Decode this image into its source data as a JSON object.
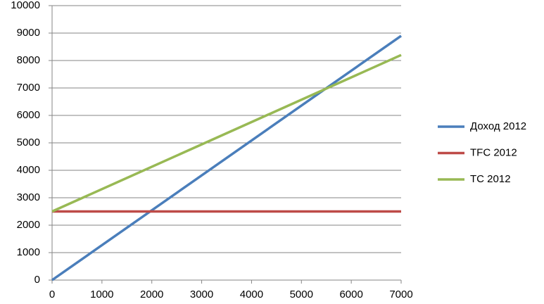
{
  "chart_data": {
    "type": "line",
    "x": [
      0,
      7000
    ],
    "series": [
      {
        "name": "Доход 2012",
        "color": "#4a7ebb",
        "values": [
          0,
          8900
        ]
      },
      {
        "name": "TFC 2012",
        "color": "#be4b48",
        "values": [
          2500,
          2500
        ]
      },
      {
        "name": "TC 2012",
        "color": "#98b954",
        "values": [
          2500,
          8200
        ]
      }
    ],
    "xlim": [
      0,
      7000
    ],
    "xticks": [
      0,
      1000,
      2000,
      3000,
      4000,
      5000,
      6000,
      7000
    ],
    "ylim": [
      0,
      10000
    ],
    "yticks": [
      0,
      1000,
      2000,
      3000,
      4000,
      5000,
      6000,
      7000,
      8000,
      9000,
      10000
    ],
    "grid": true,
    "legend": "right"
  }
}
